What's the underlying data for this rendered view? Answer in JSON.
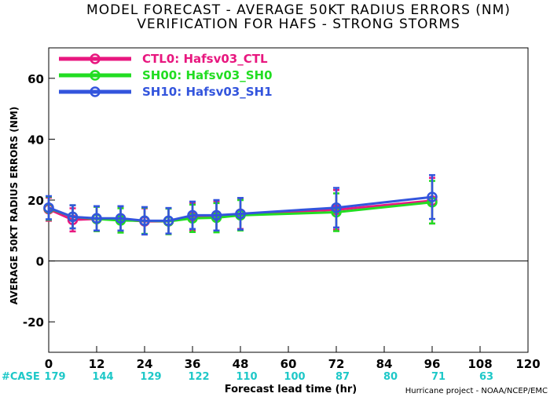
{
  "title": {
    "line1": "MODEL FORECAST - AVERAGE 50KT RADIUS ERRORS (NM)",
    "line2": "VERIFICATION FOR HAFS - STRONG STORMS"
  },
  "credit": "Hurricane project - NOAA/NCEP/EMC",
  "chart_data": {
    "type": "line",
    "title": "MODEL FORECAST - AVERAGE 50KT RADIUS ERRORS (NM)",
    "subtitle": "VERIFICATION FOR HAFS - STRONG STORMS",
    "xlabel": "Forecast lead time (hr)",
    "ylabel": "AVERAGE 50KT RADIUS ERRORS (NM)",
    "xlim": [
      0,
      120
    ],
    "ylim": [
      -30,
      70
    ],
    "x_ticks": [
      0,
      12,
      24,
      36,
      48,
      60,
      72,
      84,
      96,
      108,
      120
    ],
    "y_ticks": [
      -20,
      0,
      20,
      40,
      60
    ],
    "zero_line": true,
    "legend_position": "top-left",
    "case_label": "#CASE",
    "cases": [
      {
        "x": 0,
        "n": "179"
      },
      {
        "x": 12,
        "n": "144"
      },
      {
        "x": 24,
        "n": "129"
      },
      {
        "x": 36,
        "n": "122"
      },
      {
        "x": 48,
        "n": "110"
      },
      {
        "x": 60,
        "n": "100"
      },
      {
        "x": 72,
        "n": "87"
      },
      {
        "x": 84,
        "n": "80"
      },
      {
        "x": 96,
        "n": "71"
      },
      {
        "x": 108,
        "n": "63"
      }
    ],
    "series": [
      {
        "name": "CTL0: Hafsv03_CTL",
        "color": "#e8177f",
        "x": [
          0,
          6,
          12,
          18,
          24,
          30,
          36,
          42,
          48,
          72,
          96
        ],
        "y": [
          17.0,
          13.5,
          13.8,
          13.6,
          13.0,
          13.0,
          14.5,
          14.7,
          15.5,
          16.8,
          19.8
        ],
        "err": [
          3.8,
          3.8,
          4.0,
          4.0,
          4.3,
          4.2,
          4.5,
          4.8,
          5.0,
          6.5,
          7.5
        ]
      },
      {
        "name": "SH00: Hafsv03_SH0",
        "color": "#22dd22",
        "x": [
          0,
          6,
          12,
          18,
          24,
          30,
          36,
          42,
          48,
          72,
          96
        ],
        "y": [
          17.3,
          14.5,
          13.8,
          13.3,
          13.2,
          13.0,
          14.0,
          14.2,
          15.0,
          16.0,
          19.3
        ],
        "err": [
          3.8,
          3.8,
          4.0,
          4.0,
          4.3,
          4.2,
          4.5,
          4.8,
          5.0,
          6.2,
          7.0
        ]
      },
      {
        "name": "SH10: Hafsv03_SH1",
        "color": "#3355dd",
        "x": [
          0,
          6,
          12,
          18,
          24,
          30,
          36,
          42,
          48,
          72,
          96
        ],
        "y": [
          17.5,
          14.5,
          14.0,
          14.0,
          13.2,
          13.2,
          15.0,
          15.0,
          15.5,
          17.5,
          21.0
        ],
        "err": [
          3.8,
          3.8,
          4.0,
          4.0,
          4.5,
          4.2,
          4.5,
          5.0,
          5.2,
          6.5,
          7.2
        ]
      }
    ]
  }
}
